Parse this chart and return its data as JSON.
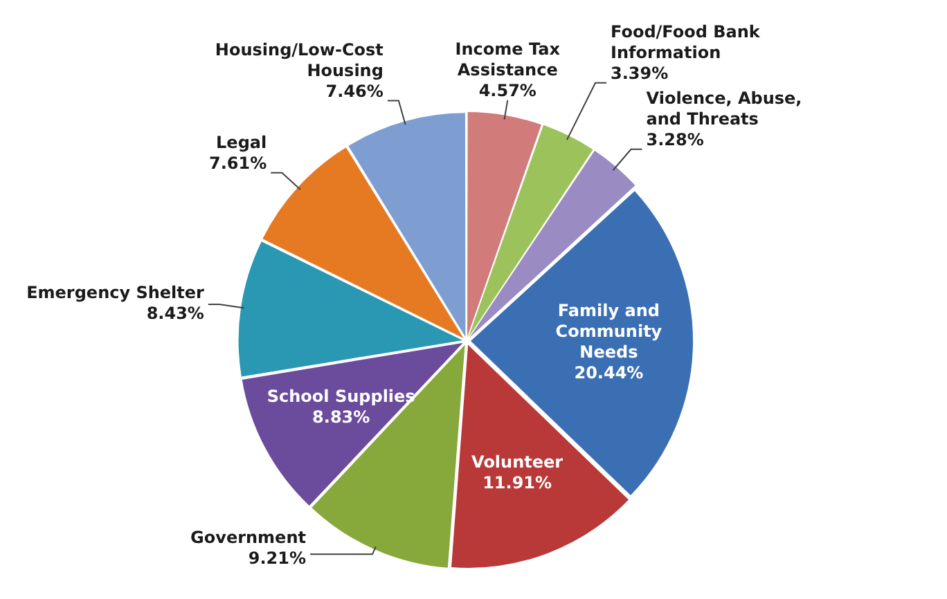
{
  "chart_data": {
    "type": "pie",
    "categories": [
      "Income Tax Assistance",
      "Food/Food Bank Information",
      "Violence, Abuse, and Threats",
      "Family and Community Needs",
      "Volunteer",
      "Government",
      "School Supplies",
      "Emergency Shelter",
      "Legal",
      "Housing/Low-Cost Housing"
    ],
    "values": [
      4.57,
      3.39,
      3.28,
      20.44,
      11.91,
      9.21,
      8.83,
      8.43,
      7.61,
      7.46
    ],
    "value_labels": [
      "4.57%",
      "3.39%",
      "3.28%",
      "20.44%",
      "11.91%",
      "9.21%",
      "8.83%",
      "8.43%",
      "7.61%",
      "7.46%"
    ],
    "colors": [
      "#d27b7b",
      "#9cc25c",
      "#9a8cc2",
      "#3b6fb3",
      "#b93838",
      "#87a83a",
      "#6b4b9c",
      "#2b98b3",
      "#e57a22",
      "#7e9ed2"
    ],
    "legend": false
  }
}
